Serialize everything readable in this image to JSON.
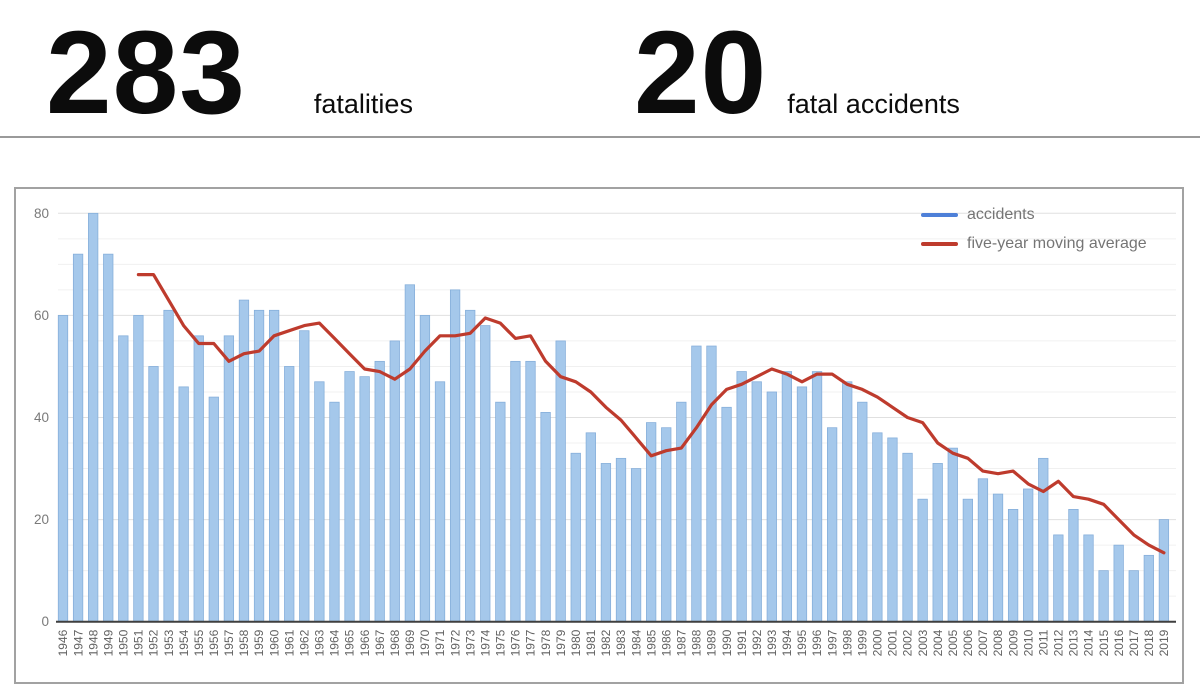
{
  "header": {
    "stats": [
      {
        "value": "283",
        "label": "fatalities"
      },
      {
        "value": "20",
        "label": "fatal accidents"
      }
    ]
  },
  "legend": [
    {
      "label": "accidents",
      "color": "#4e80d8"
    },
    {
      "label": "five-year moving average",
      "color": "#be3b2d"
    }
  ],
  "chart_data": {
    "type": "bar",
    "title": "",
    "xlabel": "",
    "ylabel": "",
    "ylim": [
      0,
      80
    ],
    "yticks": [
      0,
      20,
      40,
      60,
      80
    ],
    "minor_grid_step": 5,
    "grid": "horizontal",
    "legend_position": "top-right",
    "categories": [
      1946,
      1947,
      1948,
      1949,
      1950,
      1951,
      1952,
      1953,
      1954,
      1955,
      1956,
      1957,
      1958,
      1959,
      1960,
      1961,
      1962,
      1963,
      1964,
      1965,
      1966,
      1967,
      1968,
      1969,
      1970,
      1971,
      1972,
      1973,
      1974,
      1975,
      1976,
      1977,
      1978,
      1979,
      1980,
      1981,
      1982,
      1983,
      1984,
      1985,
      1986,
      1987,
      1988,
      1989,
      1990,
      1991,
      1992,
      1993,
      1994,
      1995,
      1996,
      1997,
      1998,
      1999,
      2000,
      2001,
      2002,
      2003,
      2004,
      2005,
      2006,
      2007,
      2008,
      2009,
      2010,
      2011,
      2012,
      2013,
      2014,
      2015,
      2016,
      2017,
      2018,
      2019
    ],
    "series": [
      {
        "name": "accidents",
        "type": "bar",
        "color": "#a5c8eb",
        "border_color": "#84add9",
        "values": [
          60,
          72,
          80,
          72,
          56,
          60,
          50,
          61,
          46,
          56,
          44,
          56,
          63,
          61,
          61,
          50,
          57,
          47,
          43,
          49,
          48,
          51,
          55,
          66,
          60,
          47,
          65,
          61,
          58,
          43,
          51,
          51,
          41,
          55,
          33,
          37,
          31,
          32,
          30,
          39,
          38,
          43,
          54,
          54,
          42,
          49,
          47,
          45,
          49,
          46,
          49,
          38,
          47,
          43,
          37,
          36,
          33,
          24,
          31,
          34,
          24,
          28,
          25,
          22,
          26,
          32,
          17,
          22,
          17,
          10,
          15,
          10,
          13,
          20
        ]
      },
      {
        "name": "five-year moving average",
        "type": "line",
        "color": "#be3b2d",
        "values": [
          null,
          null,
          null,
          null,
          null,
          68,
          68,
          63,
          58,
          54.5,
          54.5,
          51,
          52.5,
          53,
          56,
          57,
          58,
          58.5,
          55.5,
          52.5,
          49.5,
          49,
          47.5,
          49.5,
          53,
          56,
          56,
          56.5,
          59.5,
          58.5,
          55.5,
          56,
          51,
          48,
          47,
          45,
          42,
          39.5,
          36,
          32.5,
          33.5,
          34,
          38,
          42.5,
          45.5,
          46.5,
          48,
          49.5,
          48.5,
          47,
          48.5,
          48.5,
          46.5,
          45.5,
          44,
          42,
          40,
          39,
          35,
          33,
          32,
          29.5,
          29,
          29.5,
          27,
          25.5,
          27.5,
          24.5,
          24,
          23,
          20,
          17,
          15,
          13.5
        ]
      }
    ],
    "axis_colors": {
      "tick_label": "#7a7a7a",
      "year_label": "#616161",
      "baseline": "#3f3f3f",
      "major_grid": "#e0e0e0",
      "minor_grid": "#f0f0f0"
    }
  }
}
